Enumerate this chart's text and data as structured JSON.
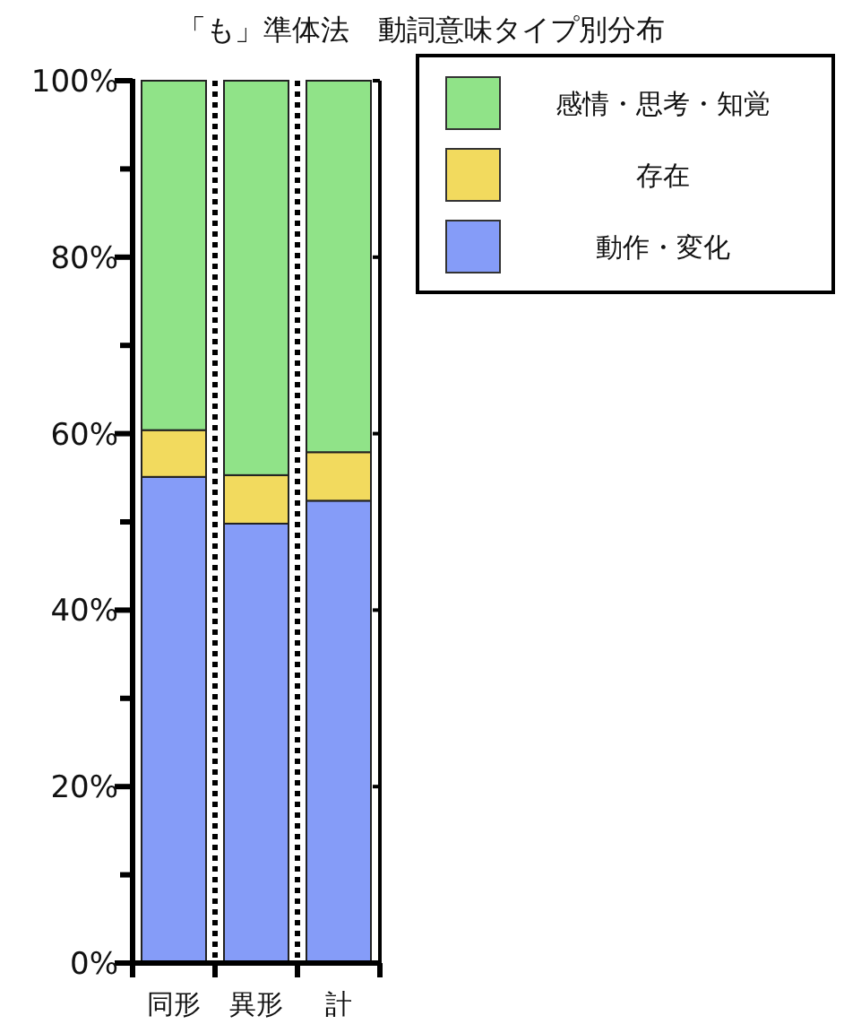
{
  "chart_data": {
    "type": "bar",
    "title": "「も」準体法　動詞意味タイプ別分布",
    "categories": [
      "同形",
      "異形",
      "計"
    ],
    "stacked": true,
    "series": [
      {
        "name": "動作・変化",
        "color": "#859cf8",
        "values": [
          55.1,
          49.8,
          52.4
        ]
      },
      {
        "name": "存在",
        "color": "#f2da5e",
        "values": [
          5.3,
          5.5,
          5.5
        ]
      },
      {
        "name": "感情・思考・知覚",
        "color": "#90e388",
        "values": [
          39.6,
          44.7,
          42.1
        ]
      }
    ],
    "ylim": [
      0,
      100
    ],
    "yticks": [
      {
        "value": 0,
        "label": "0%"
      },
      {
        "value": 10,
        "label": null
      },
      {
        "value": 20,
        "label": "20%"
      },
      {
        "value": 30,
        "label": null
      },
      {
        "value": 40,
        "label": "40%"
      },
      {
        "value": 50,
        "label": null
      },
      {
        "value": 60,
        "label": "60%"
      },
      {
        "value": 70,
        "label": null
      },
      {
        "value": 80,
        "label": "80%"
      },
      {
        "value": 90,
        "label": null
      },
      {
        "value": 100,
        "label": "100%"
      }
    ],
    "grid": "x",
    "legend": "top right"
  }
}
